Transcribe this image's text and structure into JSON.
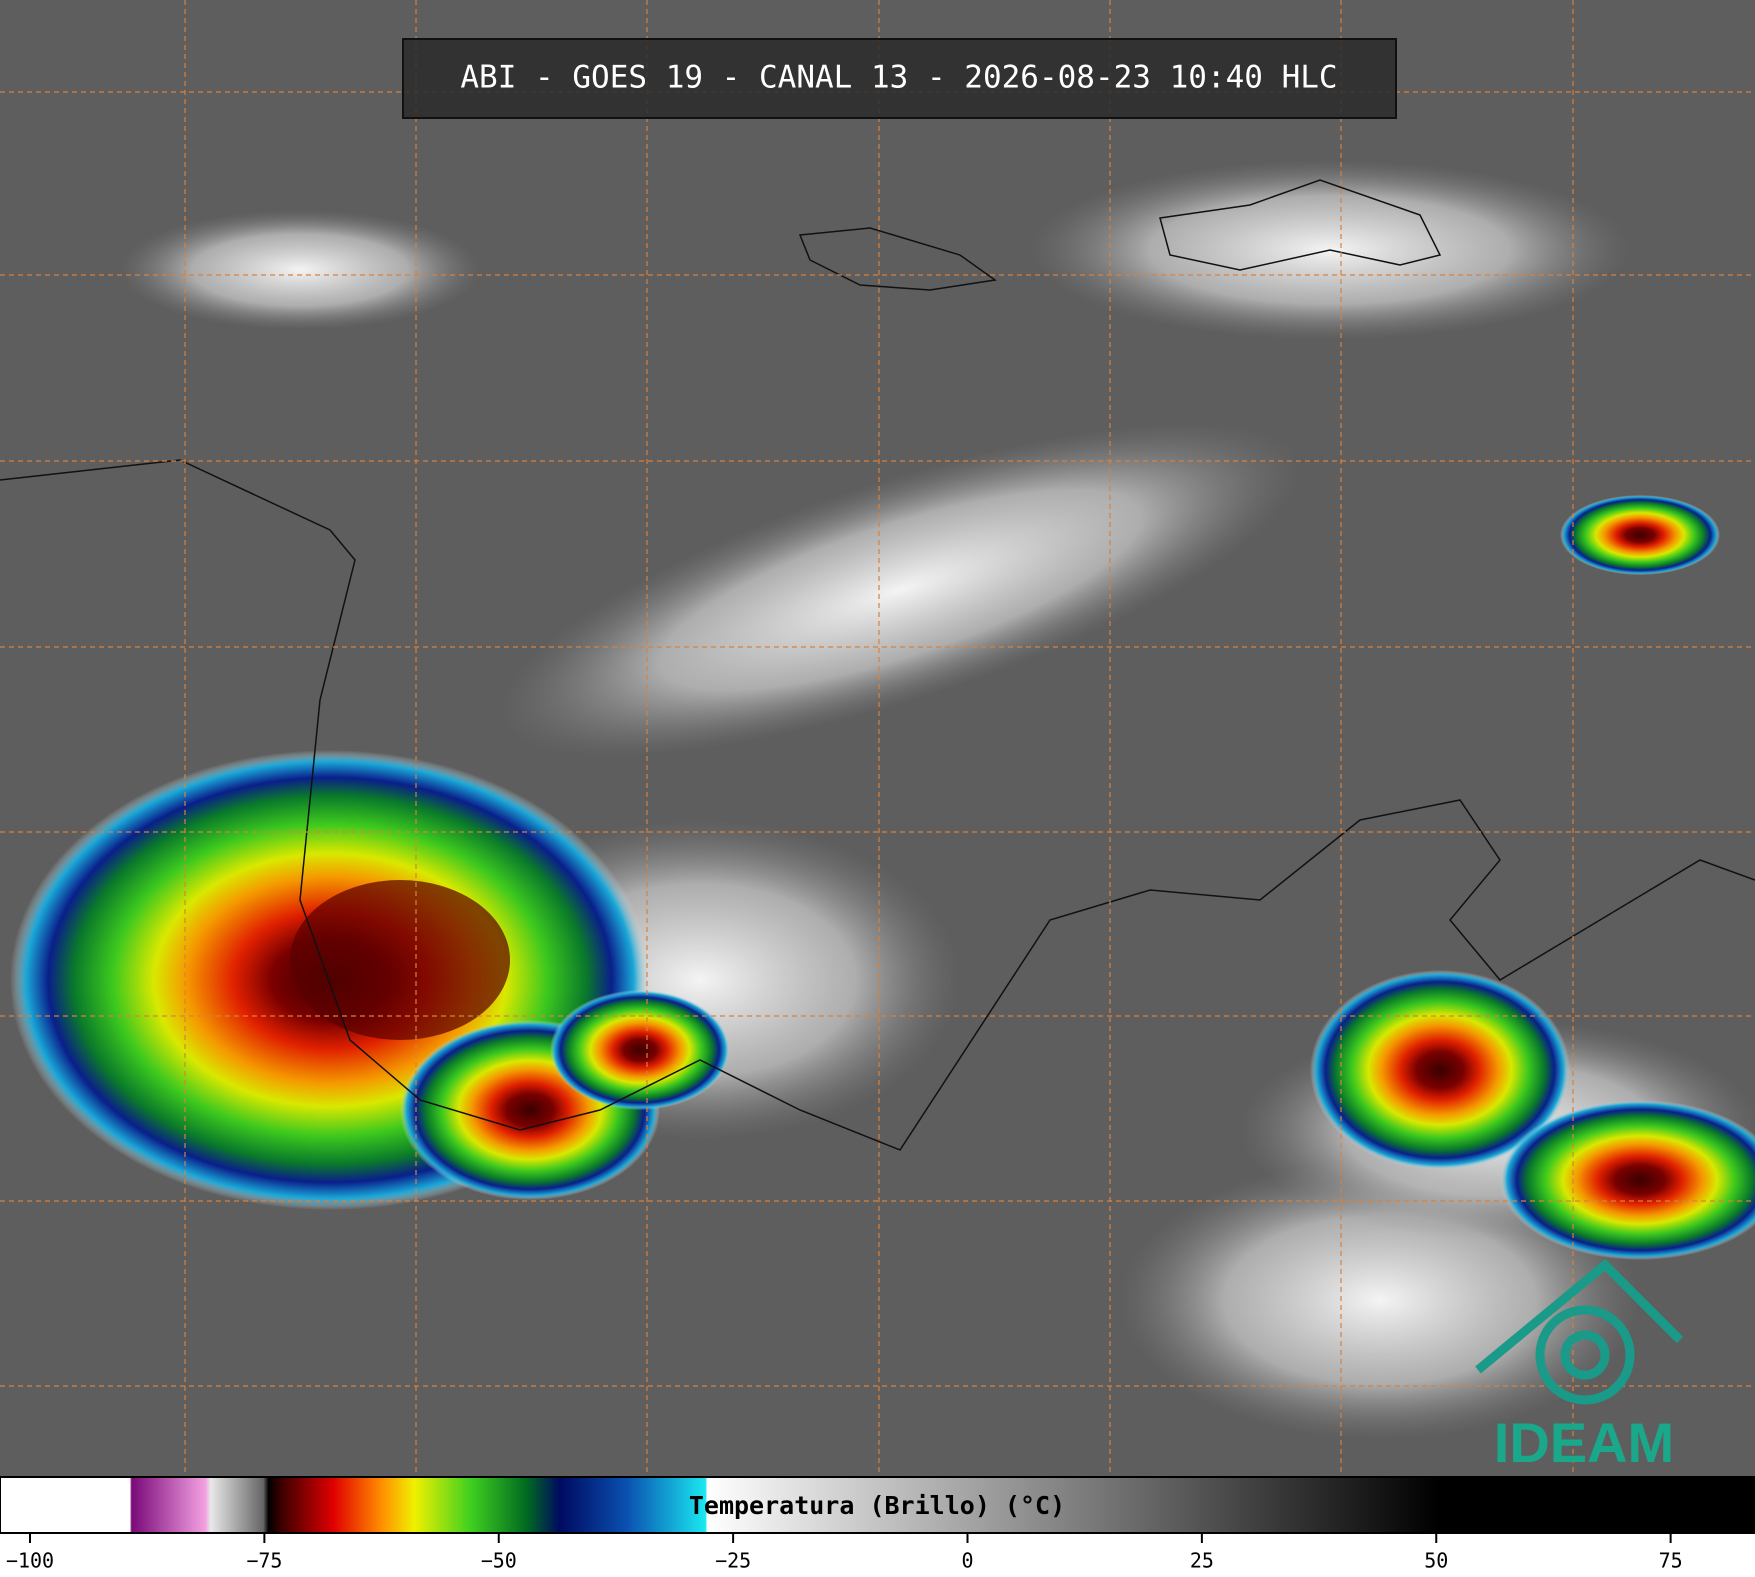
{
  "header": {
    "title": "ABI - GOES 19 - CANAL 13 - 2026-08-23 10:40 HLC"
  },
  "colorbar": {
    "label": "Temperatura (Brillo) (°C)",
    "lim": [
      -103.2,
      84
    ],
    "ticks": [
      {
        "value": -100,
        "label": "−100"
      },
      {
        "value": -75,
        "label": "−75"
      },
      {
        "value": -50,
        "label": "−50"
      },
      {
        "value": -25,
        "label": "−25"
      },
      0,
      25,
      50,
      75
    ]
  },
  "logo": {
    "text": "IDEAM"
  }
}
